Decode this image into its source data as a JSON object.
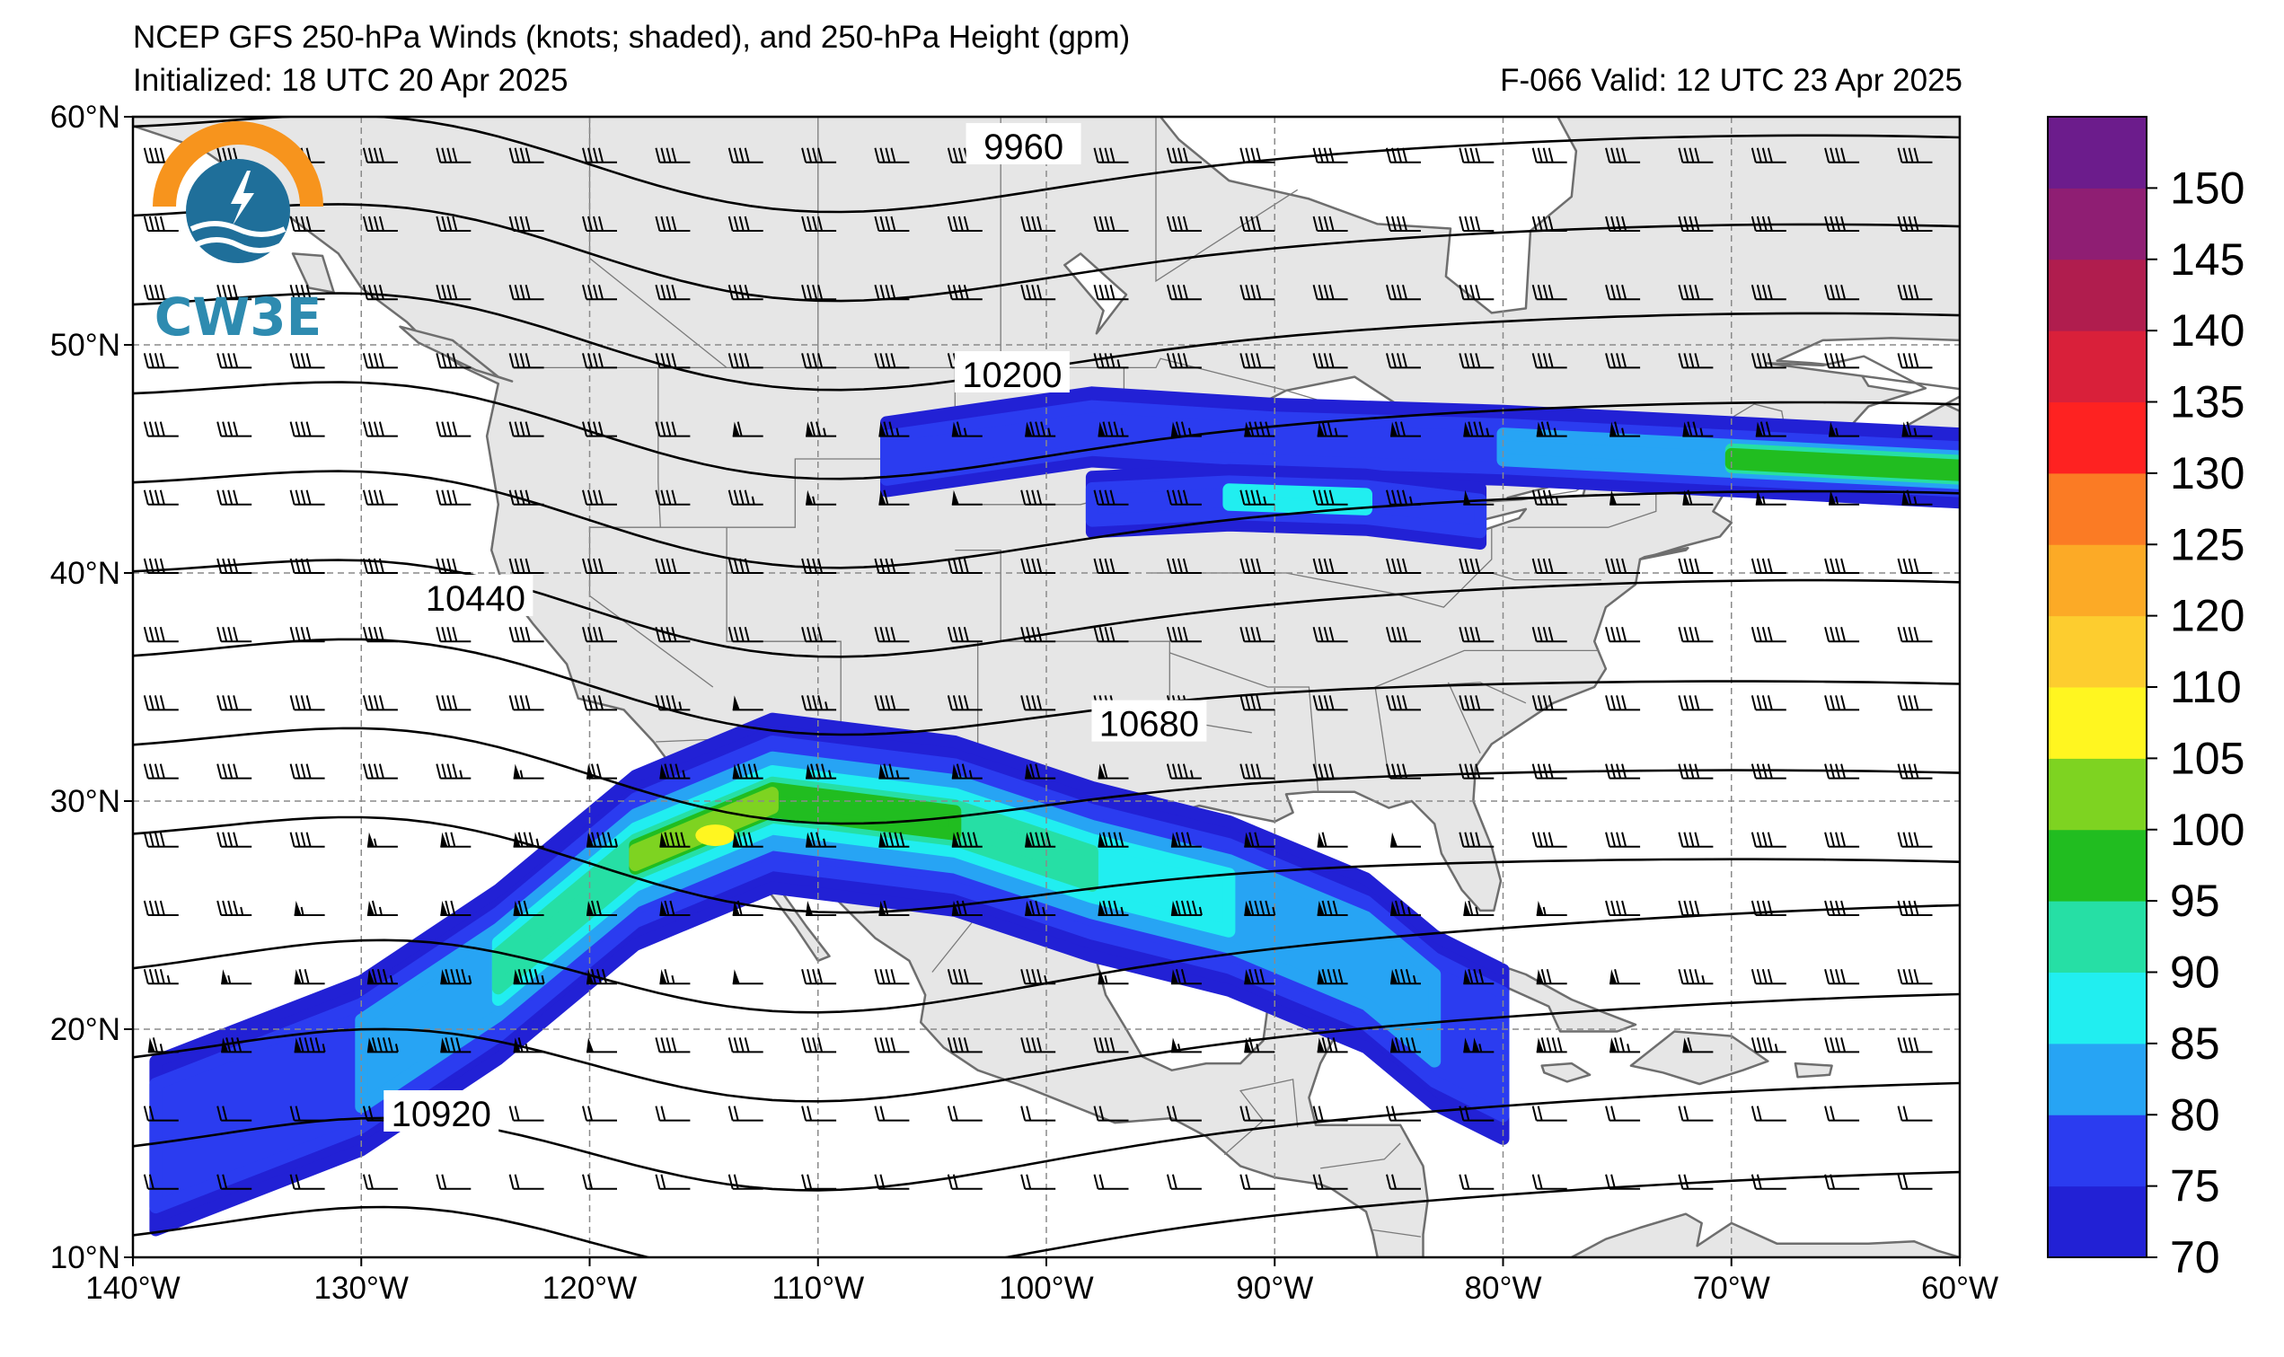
{
  "title": {
    "line1": "NCEP GFS 250-hPa Winds (knots; shaded), and 250-hPa Height (gpm)",
    "initialized": "Initialized: 18 UTC 20 Apr 2025",
    "valid": "F-066  Valid: 12 UTC 23 Apr 2025"
  },
  "logo": {
    "text": "CW3E",
    "icon": "cw3e-logo-icon"
  },
  "map": {
    "projection": "plate carree",
    "lon_range": [
      -140,
      -60
    ],
    "lat_range": [
      10,
      60
    ],
    "grid": "dashed",
    "lat_ticks": [
      {
        "value": 60,
        "label": "60°N"
      },
      {
        "value": 50,
        "label": "50°N"
      },
      {
        "value": 40,
        "label": "40°N"
      },
      {
        "value": 30,
        "label": "30°N"
      },
      {
        "value": 20,
        "label": "20°N"
      },
      {
        "value": 10,
        "label": "10°N"
      }
    ],
    "lon_ticks": [
      {
        "value": -140,
        "label": "140°W"
      },
      {
        "value": -130,
        "label": "130°W"
      },
      {
        "value": -120,
        "label": "120°W"
      },
      {
        "value": -110,
        "label": "110°W"
      },
      {
        "value": -100,
        "label": "100°W"
      },
      {
        "value": -90,
        "label": "90°W"
      },
      {
        "value": -80,
        "label": "80°W"
      },
      {
        "value": -70,
        "label": "70°W"
      },
      {
        "value": -60,
        "label": "60°W"
      }
    ],
    "land_color": "#e6e6e6",
    "ocean_color": "#ffffff",
    "contours": [
      {
        "value": 9960,
        "label": "9960",
        "label_lon": -101,
        "label_lat": 58.7
      },
      {
        "value": 10200,
        "label": "10200",
        "label_lon": -101.5,
        "label_lat": 48.7
      },
      {
        "value": 10440,
        "label": "10440",
        "label_lon": -125,
        "label_lat": 38.9
      },
      {
        "value": 10680,
        "label": "10680",
        "label_lon": -95.5,
        "label_lat": 33.4
      },
      {
        "value": 10920,
        "label": "10920",
        "label_lon": -126.5,
        "label_lat": 16.3
      }
    ],
    "jets": [
      {
        "name": "subtropical",
        "max_speed_kt": 110,
        "axis": [
          [
            -139,
            15
          ],
          [
            -130,
            18.5
          ],
          [
            -124,
            22.5
          ],
          [
            -118,
            27.5
          ],
          [
            -112,
            30
          ],
          [
            -104,
            29
          ],
          [
            -98,
            27
          ],
          [
            -92,
            25.5
          ],
          [
            -86,
            23
          ],
          [
            -83,
            20.5
          ],
          [
            -80,
            19
          ]
        ]
      },
      {
        "name": "northern",
        "max_speed_kt": 95,
        "axis": [
          [
            -107,
            45
          ],
          [
            -98,
            46.3
          ],
          [
            -90,
            45.8
          ],
          [
            -80,
            45.5
          ],
          [
            -70,
            45
          ],
          [
            -60,
            44.5
          ]
        ]
      },
      {
        "name": "secondary",
        "max_speed_kt": 90,
        "axis": [
          [
            -98,
            43
          ],
          [
            -92,
            43.3
          ],
          [
            -86,
            43.1
          ],
          [
            -81,
            42.5
          ]
        ]
      }
    ]
  },
  "colorbar": {
    "levels": [
      70,
      75,
      80,
      85,
      90,
      95,
      100,
      105,
      110,
      120,
      125,
      130,
      135,
      140,
      145,
      150
    ],
    "colors": [
      "#2221d5",
      "#2b3cf0",
      "#27a4f4",
      "#21eef0",
      "#26dfa5",
      "#21bd20",
      "#7ed321",
      "#fff620",
      "#fdcd2f",
      "#fcaa26",
      "#fb7b24",
      "#fe2221",
      "#d9203a",
      "#b01d4e",
      "#8f1e73",
      "#6c1c8c"
    ],
    "labels": [
      "70",
      "75",
      "80",
      "85",
      "90",
      "95",
      "100",
      "105",
      "110",
      "120",
      "125",
      "130",
      "135",
      "140",
      "145",
      "150"
    ]
  }
}
